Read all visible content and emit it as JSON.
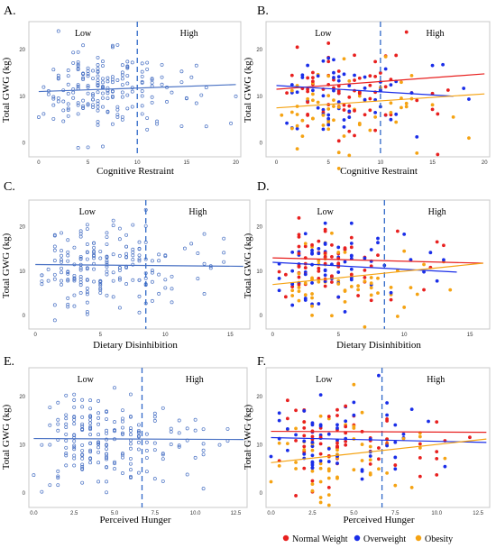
{
  "colors": {
    "single": "#4a72c4",
    "normal_weight": "#e8201f",
    "overweight": "#1a2ee8",
    "obesity": "#f5a313",
    "frame": "#c8c8c8",
    "cutoff": "#2f68c8"
  },
  "legend": {
    "items": [
      {
        "label": "Normal Weight",
        "color": "#e8201f"
      },
      {
        "label": "Overweight",
        "color": "#1a2ee8"
      },
      {
        "label": "Obesity",
        "color": "#f5a313"
      }
    ]
  },
  "chart_data": [
    {
      "panel": "A.",
      "type": "scatter",
      "xlabel": "Cognitive Restraint",
      "ylabel": "Total GWG (kg)",
      "xlim": [
        -1,
        20.5
      ],
      "ylim": [
        -3,
        26
      ],
      "xticks": [
        0,
        5,
        10,
        15,
        20
      ],
      "yticks": [
        0,
        10,
        20
      ],
      "cutoff": 10,
      "low_label": "Low",
      "high_label": "High",
      "style": "single",
      "fits": [
        {
          "group": "all",
          "x": [
            0,
            20
          ],
          "y": [
            11,
            12.5
          ]
        }
      ]
    },
    {
      "panel": "B.",
      "type": "scatter",
      "xlabel": "Cognitive Restraint",
      "ylabel": "Total GWG (kg)",
      "xlim": [
        -1,
        20.5
      ],
      "ylim": [
        -3,
        26
      ],
      "xticks": [
        0,
        5,
        10,
        15,
        20
      ],
      "yticks": [
        0,
        10,
        20
      ],
      "cutoff": 10,
      "low_label": "Low",
      "high_label": "High",
      "style": "groups",
      "fits": [
        {
          "group": "normal_weight",
          "x": [
            0,
            20
          ],
          "y": [
            11.5,
            14.8
          ]
        },
        {
          "group": "overweight",
          "x": [
            0,
            17
          ],
          "y": [
            12.3,
            10
          ]
        },
        {
          "group": "obesity",
          "x": [
            0,
            20
          ],
          "y": [
            7.5,
            10.5
          ]
        }
      ]
    },
    {
      "panel": "C.",
      "type": "scatter",
      "xlabel": "Dietary Disinhibition",
      "ylabel": "Total GWG (kg)",
      "xlim": [
        -0.5,
        16.5
      ],
      "ylim": [
        -3,
        26
      ],
      "xticks": [
        0,
        5,
        10,
        15
      ],
      "yticks": [
        0,
        10,
        20
      ],
      "cutoff": 8.5,
      "low_label": "Low",
      "high_label": "High",
      "style": "single",
      "fits": [
        {
          "group": "all",
          "x": [
            0,
            16
          ],
          "y": [
            11.5,
            11.1
          ]
        }
      ]
    },
    {
      "panel": "D.",
      "type": "scatter",
      "xlabel": "Dietary Disinhibition",
      "ylabel": "Total GWG (kg)",
      "xlim": [
        -0.5,
        16.5
      ],
      "ylim": [
        -3,
        26
      ],
      "xticks": [
        0,
        5,
        10,
        15
      ],
      "yticks": [
        0,
        10,
        20
      ],
      "cutoff": 8.5,
      "low_label": "Low",
      "high_label": "High",
      "style": "groups",
      "fits": [
        {
          "group": "normal_weight",
          "x": [
            0,
            16
          ],
          "y": [
            13,
            11.8
          ]
        },
        {
          "group": "overweight",
          "x": [
            0,
            14
          ],
          "y": [
            12,
            9.8
          ]
        },
        {
          "group": "obesity",
          "x": [
            0,
            16
          ],
          "y": [
            7,
            11.8
          ]
        }
      ]
    },
    {
      "panel": "E.",
      "type": "scatter",
      "xlabel": "Perceived Hunger",
      "ylabel": "Total GWG (kg)",
      "xlim": [
        -0.3,
        13.2
      ],
      "ylim": [
        -3,
        26
      ],
      "xticks": [
        0,
        2.5,
        5,
        7.5,
        10,
        12.5
      ],
      "xtick_labels": [
        "0.0",
        "2.5",
        "5.0",
        "7.5",
        "10.0",
        "12.5"
      ],
      "yticks": [
        0,
        10,
        20
      ],
      "cutoff": 6.7,
      "low_label": "Low",
      "high_label": "High",
      "style": "single",
      "fits": [
        {
          "group": "all",
          "x": [
            0,
            13
          ],
          "y": [
            11.3,
            11.1
          ]
        }
      ]
    },
    {
      "panel": "F.",
      "type": "scatter",
      "xlabel": "Perceived Hunger",
      "ylabel": "Total GWG (kg)",
      "xlim": [
        -0.3,
        13.2
      ],
      "ylim": [
        -3,
        26
      ],
      "xticks": [
        0,
        2.5,
        5,
        7.5,
        10,
        12.5
      ],
      "xtick_labels": [
        "0.0",
        "2.5",
        "5.0",
        "7.5",
        "10.0",
        "12.5"
      ],
      "yticks": [
        0,
        10,
        20
      ],
      "cutoff": 6.7,
      "low_label": "Low",
      "high_label": "High",
      "style": "groups",
      "fits": [
        {
          "group": "normal_weight",
          "x": [
            0,
            13
          ],
          "y": [
            12.8,
            12.6
          ]
        },
        {
          "group": "overweight",
          "x": [
            0,
            13
          ],
          "y": [
            11.5,
            10.5
          ]
        },
        {
          "group": "obesity",
          "x": [
            0,
            13
          ],
          "y": [
            6.3,
            11.2
          ]
        }
      ]
    }
  ]
}
